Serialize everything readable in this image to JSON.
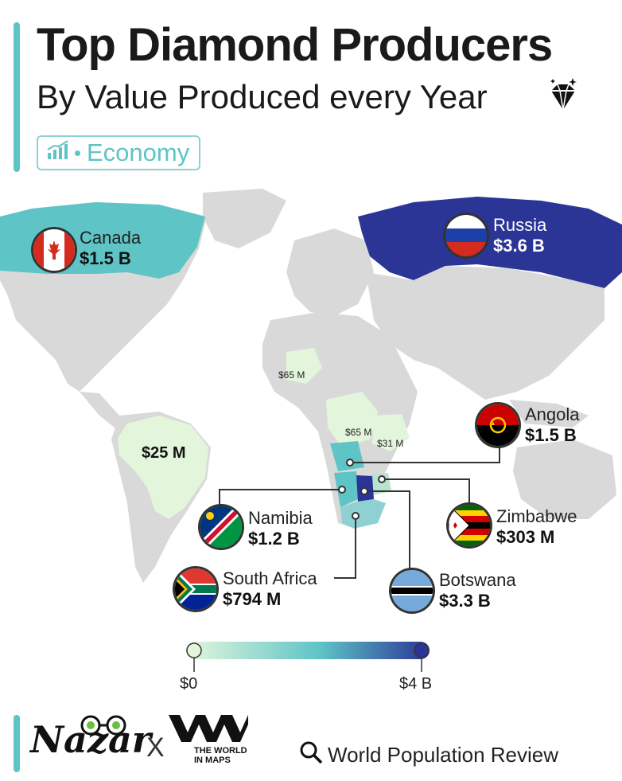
{
  "header": {
    "title": "Top Diamond Producers",
    "subtitle": "By Value Produced every Year",
    "tag": "Economy"
  },
  "colors": {
    "accent": "#5ec4c6",
    "land": "#d9d9d9",
    "scale_low": "#e3f6dc",
    "scale_mid": "#5ec4c6",
    "scale_high": "#2a3596"
  },
  "countries": {
    "canada": {
      "name": "Canada",
      "value": "$1.5 B",
      "value_usd_b": 1.5
    },
    "russia": {
      "name": "Russia",
      "value": "$3.6 B",
      "value_usd_b": 3.6
    },
    "angola": {
      "name": "Angola",
      "value": "$1.5 B",
      "value_usd_b": 1.5
    },
    "namibia": {
      "name": "Namibia",
      "value": "$1.2 B",
      "value_usd_b": 1.2
    },
    "zimbabwe": {
      "name": "Zimbabwe",
      "value": "$303 M",
      "value_usd_b": 0.303
    },
    "south_africa": {
      "name": "South Africa",
      "value": "$794 M",
      "value_usd_b": 0.794
    },
    "botswana": {
      "name": "Botswana",
      "value": "$3.3 B",
      "value_usd_b": 3.3
    },
    "brazil": {
      "value": "$25 M",
      "value_usd_b": 0.025
    },
    "sierra_leone": {
      "value": "$65 M",
      "value_usd_b": 0.065
    },
    "drc": {
      "value": "$65 M",
      "value_usd_b": 0.065
    },
    "tanzania": {
      "value": "$31 M",
      "value_usd_b": 0.031
    }
  },
  "legend": {
    "min": "$0",
    "max": "$4 B"
  },
  "footer": {
    "brand": "Nazar",
    "times": "X",
    "partner_line1": "THE WORLD",
    "partner_line2": "IN MAPS",
    "source": "World Population Review"
  }
}
